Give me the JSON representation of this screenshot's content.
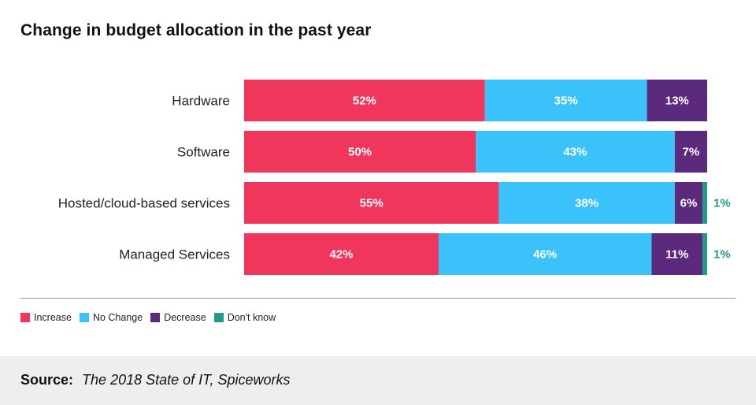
{
  "colors": {
    "increase": "#f0365d",
    "no_change": "#3cc2fb",
    "decrease": "#5c2a7c",
    "dont_know": "#22998a",
    "label_text": "#ffffff",
    "outside_label": "#22998a",
    "category_text": "#222222"
  },
  "chart_data": {
    "type": "bar",
    "orientation": "horizontal",
    "stacked": true,
    "title": "Change in budget allocation in the past year",
    "categories": [
      "Hardware",
      "Software",
      "Hosted/cloud-based services",
      "Managed Services"
    ],
    "series": [
      {
        "name": "Increase",
        "key": "increase",
        "values": [
          52,
          50,
          55,
          42
        ],
        "labels": [
          "52%",
          "50%",
          "55%",
          "42%"
        ]
      },
      {
        "name": "No Change",
        "key": "no_change",
        "values": [
          35,
          43,
          38,
          46
        ],
        "labels": [
          "35%",
          "43%",
          "38%",
          "46%"
        ]
      },
      {
        "name": "Decrease",
        "key": "decrease",
        "values": [
          13,
          7,
          6,
          11
        ],
        "labels": [
          "13%",
          "7%",
          "6%",
          "11%"
        ]
      },
      {
        "name": "Don't know",
        "key": "dont_know",
        "values": [
          0,
          0,
          1,
          1
        ],
        "labels": [
          "",
          "",
          "1%",
          "1%"
        ]
      }
    ],
    "xlim": [
      0,
      100
    ],
    "legend_position": "bottom-left"
  },
  "footer": {
    "source_label": "Source:",
    "source_text": "The 2018 State of IT, Spiceworks"
  }
}
